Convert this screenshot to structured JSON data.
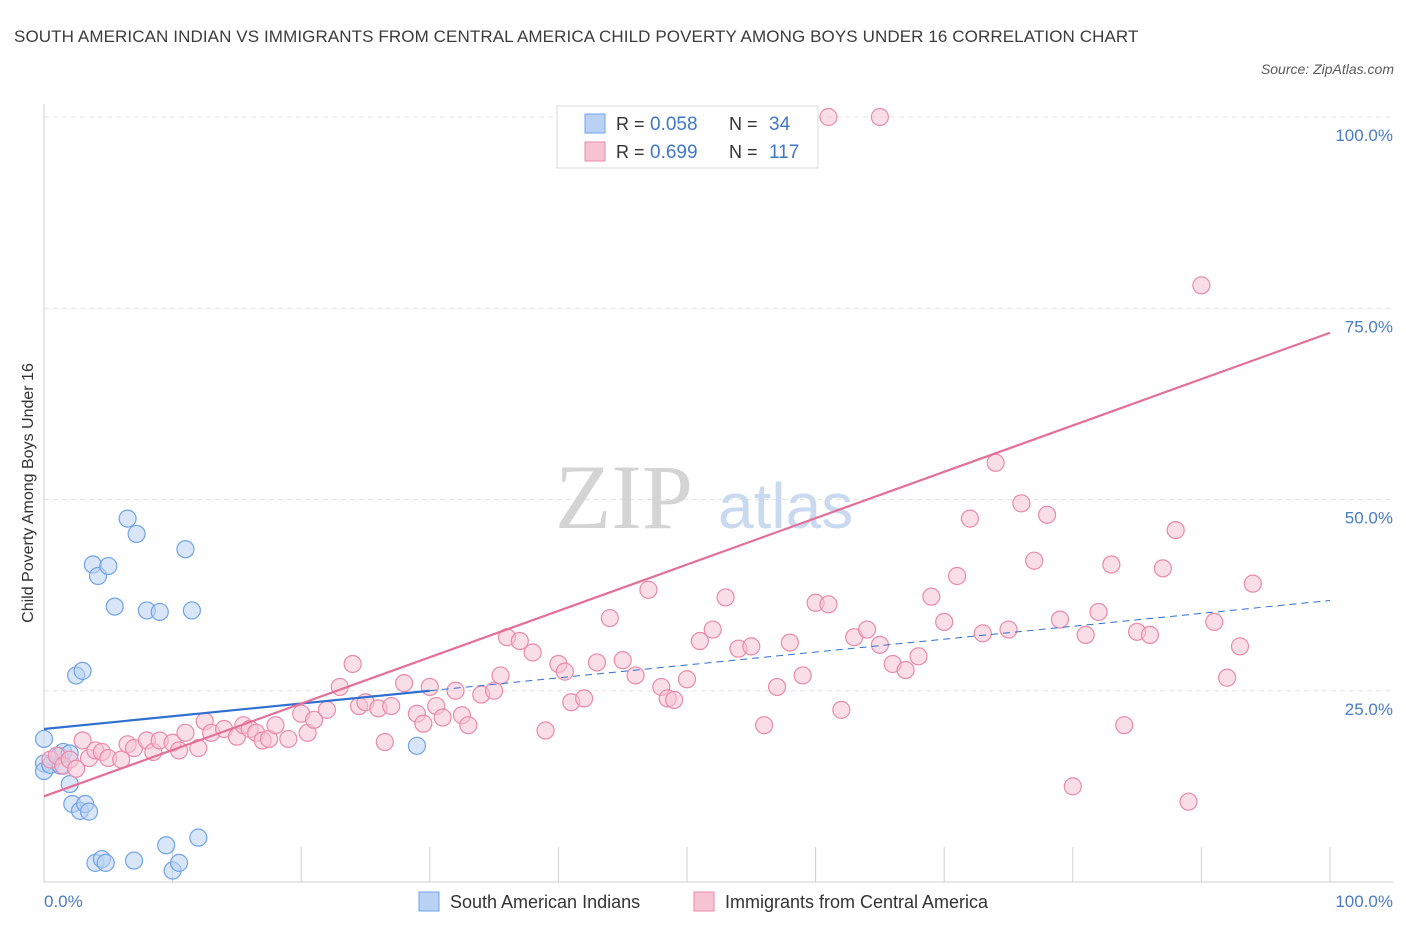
{
  "title": "SOUTH AMERICAN INDIAN VS IMMIGRANTS FROM CENTRAL AMERICA CHILD POVERTY AMONG BOYS UNDER 16 CORRELATION CHART",
  "source": "Source: ZipAtlas.com",
  "watermark": {
    "zip": "ZIP",
    "atlas": "atlas"
  },
  "chart_data": {
    "type": "scatter",
    "title": "SOUTH AMERICAN INDIAN VS IMMIGRANTS FROM CENTRAL AMERICA CHILD POVERTY AMONG BOYS UNDER 16 CORRELATION CHART",
    "xlabel": "",
    "ylabel": "Child Poverty Among Boys Under 16",
    "xlim": [
      0,
      100
    ],
    "ylim": [
      0,
      100
    ],
    "x_tick_labels": {
      "left": "0.0%",
      "right": "100.0%"
    },
    "y_ticks": [
      {
        "value": 100,
        "label": "100.0%"
      },
      {
        "value": 75,
        "label": "75.0%"
      },
      {
        "value": 50,
        "label": "50.0%"
      },
      {
        "value": 25,
        "label": "25.0%"
      }
    ],
    "grid": true,
    "legend_position": "top-center",
    "stats": [
      {
        "r_label": "R =",
        "r_value": "0.058",
        "n_label": "N =",
        "n_value": "34"
      },
      {
        "r_label": "R =",
        "r_value": "0.699",
        "n_label": "N =",
        "n_value": "117"
      }
    ],
    "series": [
      {
        "name": "South American Indians",
        "color": "#6fa3e8",
        "fill": "#b9d2f3",
        "line_color": "#2f6fcf",
        "trend": {
          "x0": 0,
          "y0": 20.0,
          "x1": 30,
          "y1": 25.0,
          "dashed_to_x": 100,
          "dashed_to_y": 36.8
        },
        "points": [
          [
            0,
            18.7
          ],
          [
            0,
            15.5
          ],
          [
            0,
            14.5
          ],
          [
            0.5,
            15.3
          ],
          [
            1.2,
            16.5
          ],
          [
            1.3,
            15.2
          ],
          [
            1.5,
            17.0
          ],
          [
            2.0,
            12.8
          ],
          [
            2.2,
            10.2
          ],
          [
            2.5,
            27.0
          ],
          [
            2.8,
            9.3
          ],
          [
            3.0,
            27.6
          ],
          [
            3.2,
            10.2
          ],
          [
            3.5,
            9.2
          ],
          [
            4.0,
            2.5
          ],
          [
            4.5,
            3.0
          ],
          [
            4.8,
            2.5
          ],
          [
            5.5,
            36.0
          ],
          [
            6.5,
            47.5
          ],
          [
            7.0,
            2.8
          ],
          [
            8.0,
            35.5
          ],
          [
            9.0,
            35.3
          ],
          [
            9.5,
            4.8
          ],
          [
            10.0,
            1.5
          ],
          [
            10.5,
            2.5
          ],
          [
            11.0,
            43.5
          ],
          [
            11.5,
            35.5
          ],
          [
            12.0,
            5.8
          ],
          [
            3.8,
            41.5
          ],
          [
            4.2,
            40.0
          ],
          [
            5.0,
            41.3
          ],
          [
            7.2,
            45.5
          ],
          [
            2.0,
            16.8
          ],
          [
            29.0,
            17.8
          ]
        ]
      },
      {
        "name": "Immigrants from Central America",
        "color": "#e98aa9",
        "fill": "#f6c3d3",
        "line_color": "#e46f99",
        "trend": {
          "x0": 0,
          "y0": 11.2,
          "x1": 100,
          "y1": 71.8
        },
        "points": [
          [
            0.5,
            16.0
          ],
          [
            1.0,
            16.5
          ],
          [
            1.5,
            15.2
          ],
          [
            2.0,
            16.0
          ],
          [
            2.5,
            14.8
          ],
          [
            3.0,
            18.5
          ],
          [
            3.5,
            16.2
          ],
          [
            4.0,
            17.2
          ],
          [
            4.5,
            17.0
          ],
          [
            5.0,
            16.2
          ],
          [
            6.0,
            16.0
          ],
          [
            6.5,
            18.0
          ],
          [
            7.0,
            17.5
          ],
          [
            8.0,
            18.5
          ],
          [
            8.5,
            17.0
          ],
          [
            9.0,
            18.5
          ],
          [
            10.0,
            18.2
          ],
          [
            10.5,
            17.2
          ],
          [
            11.0,
            19.5
          ],
          [
            12.0,
            17.5
          ],
          [
            12.5,
            21.0
          ],
          [
            13.0,
            19.5
          ],
          [
            14.0,
            20.0
          ],
          [
            15.0,
            19.0
          ],
          [
            15.5,
            20.5
          ],
          [
            16.0,
            20.0
          ],
          [
            16.5,
            19.5
          ],
          [
            17.0,
            18.5
          ],
          [
            17.5,
            18.7
          ],
          [
            18.0,
            20.5
          ],
          [
            19.0,
            18.7
          ],
          [
            20.0,
            22.0
          ],
          [
            20.5,
            19.5
          ],
          [
            21.0,
            21.2
          ],
          [
            22.0,
            22.5
          ],
          [
            23.0,
            25.5
          ],
          [
            24.0,
            28.5
          ],
          [
            24.5,
            23.0
          ],
          [
            25.0,
            23.5
          ],
          [
            26.0,
            22.7
          ],
          [
            26.5,
            18.3
          ],
          [
            27.0,
            23.0
          ],
          [
            28.0,
            26.0
          ],
          [
            29.0,
            22.0
          ],
          [
            29.5,
            20.7
          ],
          [
            30.0,
            25.5
          ],
          [
            30.5,
            23.0
          ],
          [
            31.0,
            21.5
          ],
          [
            32.0,
            25.0
          ],
          [
            32.5,
            21.8
          ],
          [
            33.0,
            20.5
          ],
          [
            34.0,
            24.5
          ],
          [
            35.0,
            25.0
          ],
          [
            35.5,
            27.0
          ],
          [
            36.0,
            32.0
          ],
          [
            37.0,
            31.5
          ],
          [
            38.0,
            30.0
          ],
          [
            39.0,
            19.8
          ],
          [
            40.0,
            28.5
          ],
          [
            40.5,
            27.5
          ],
          [
            41.0,
            23.5
          ],
          [
            42.0,
            24.0
          ],
          [
            43.0,
            28.7
          ],
          [
            44.0,
            34.5
          ],
          [
            45.0,
            29.0
          ],
          [
            46.0,
            27.0
          ],
          [
            47.0,
            38.2
          ],
          [
            48.0,
            25.5
          ],
          [
            48.5,
            24.0
          ],
          [
            49.0,
            23.8
          ],
          [
            50.0,
            26.5
          ],
          [
            51.0,
            31.5
          ],
          [
            52.0,
            33.0
          ],
          [
            53.0,
            37.2
          ],
          [
            54.0,
            30.5
          ],
          [
            55.0,
            30.8
          ],
          [
            56.0,
            20.5
          ],
          [
            57.0,
            25.5
          ],
          [
            58.0,
            31.3
          ],
          [
            59.0,
            27.0
          ],
          [
            60.0,
            36.5
          ],
          [
            61.0,
            36.3
          ],
          [
            62.0,
            22.5
          ],
          [
            63.0,
            32.0
          ],
          [
            64.0,
            33.0
          ],
          [
            65.0,
            31.0
          ],
          [
            66.0,
            28.5
          ],
          [
            67.0,
            27.7
          ],
          [
            68.0,
            29.5
          ],
          [
            69.0,
            37.3
          ],
          [
            70.0,
            34.0
          ],
          [
            71.0,
            40.0
          ],
          [
            72.0,
            47.5
          ],
          [
            73.0,
            32.5
          ],
          [
            74.0,
            54.8
          ],
          [
            75.0,
            33.0
          ],
          [
            76.0,
            49.5
          ],
          [
            77.0,
            42.0
          ],
          [
            78.0,
            48.0
          ],
          [
            79.0,
            34.3
          ],
          [
            80.0,
            12.5
          ],
          [
            81.0,
            32.3
          ],
          [
            82.0,
            35.3
          ],
          [
            83.0,
            41.5
          ],
          [
            84.0,
            20.5
          ],
          [
            85.0,
            32.7
          ],
          [
            86.0,
            32.3
          ],
          [
            87.0,
            41.0
          ],
          [
            88.0,
            46.0
          ],
          [
            89.0,
            10.5
          ],
          [
            90.0,
            78.0
          ],
          [
            91.0,
            34.0
          ],
          [
            92.0,
            26.7
          ],
          [
            93.0,
            30.8
          ],
          [
            94.0,
            39.0
          ],
          [
            61.0,
            100.0
          ],
          [
            65.0,
            100.0
          ]
        ]
      }
    ]
  },
  "legend": {
    "items": [
      {
        "label": "South American Indians"
      },
      {
        "label": "Immigrants from Central America"
      }
    ]
  }
}
